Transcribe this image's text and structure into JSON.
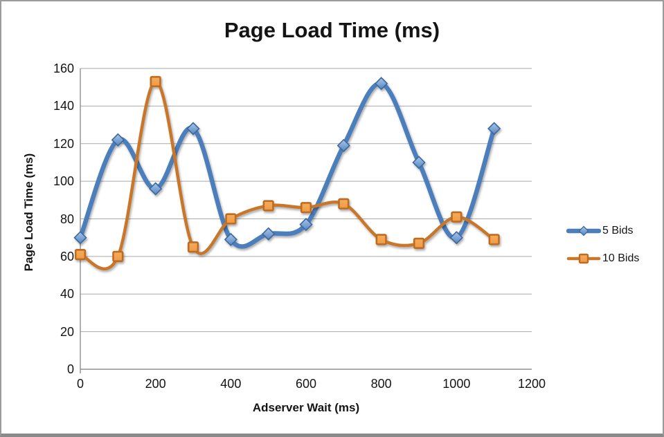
{
  "chart_data": {
    "type": "line",
    "smooth": true,
    "title": "Page Load Time (ms)",
    "xlabel": "Adserver Wait (ms)",
    "ylabel": "Page Load Time (ms)",
    "x": [
      0,
      100,
      200,
      300,
      400,
      500,
      600,
      700,
      800,
      900,
      1000,
      1100
    ],
    "series": [
      {
        "name": "5 Bids",
        "marker": "diamond",
        "line_color": "#4B7EBB",
        "line_width": 6.5,
        "marker_fill_top": "#A9C7EA",
        "marker_fill_bottom": "#5585C4",
        "marker_stroke": "#3C6899",
        "values": [
          70,
          122,
          96,
          128,
          69,
          72,
          77,
          119,
          152,
          110,
          70,
          128
        ]
      },
      {
        "name": "10 Bids",
        "marker": "square",
        "line_color": "#C8772B",
        "line_width": 4.5,
        "marker_fill_top": "#F6AC5C",
        "marker_fill_bottom": "#F09A47",
        "marker_stroke": "#BE6C24",
        "values": [
          61,
          60,
          153,
          65,
          80,
          87,
          86,
          88,
          69,
          67,
          81,
          69
        ]
      }
    ],
    "xlim": [
      0,
      1200
    ],
    "ylim": [
      0,
      160
    ],
    "x_ticks": [
      0,
      200,
      400,
      600,
      800,
      1000,
      1200
    ],
    "y_ticks": [
      0,
      20,
      40,
      60,
      80,
      100,
      120,
      140,
      160
    ],
    "grid": true,
    "legend_position": "right"
  },
  "colors": {
    "gridline": "#A9A9A9",
    "axis": "#8E8E8E",
    "text": "#141414",
    "background": "#FFFFFF",
    "frame_border": "#9B9B9B"
  }
}
